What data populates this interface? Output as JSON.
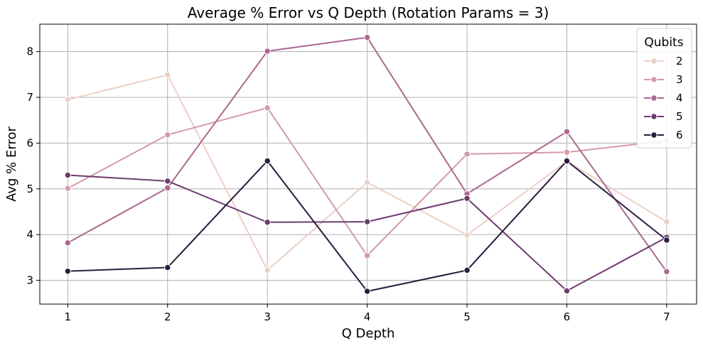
{
  "chart_data": {
    "type": "line",
    "title": "Average % Error vs Q Depth (Rotation Params = 3)",
    "xlabel": "Q Depth",
    "ylabel": "Avg % Error",
    "x": [
      1,
      2,
      3,
      4,
      5,
      6,
      7
    ],
    "xticks": [
      "1",
      "2",
      "3",
      "4",
      "5",
      "6",
      "7"
    ],
    "yticks": [
      "3",
      "4",
      "5",
      "6",
      "7",
      "8"
    ],
    "xlim": [
      0.72,
      7.3
    ],
    "ylim": [
      2.48,
      8.6
    ],
    "grid": true,
    "legend": {
      "title": "Qubits",
      "placement": "top-right"
    },
    "series": [
      {
        "name": "2",
        "color": "#ecd0c6",
        "values": [
          6.95,
          7.49,
          3.22,
          5.14,
          3.99,
          5.6,
          4.28
        ]
      },
      {
        "name": "3",
        "color": "#d59aa8",
        "values": [
          5.01,
          6.18,
          6.77,
          3.54,
          5.76,
          5.8,
          6.05
        ]
      },
      {
        "name": "4",
        "color": "#ad6890",
        "values": [
          3.82,
          5.02,
          8.01,
          8.31,
          4.89,
          6.25,
          3.19
        ]
      },
      {
        "name": "5",
        "color": "#6c3b6e",
        "values": [
          5.3,
          5.17,
          4.27,
          4.28,
          4.79,
          2.77,
          3.94
        ]
      },
      {
        "name": "6",
        "color": "#2b1c3e",
        "values": [
          3.2,
          3.28,
          5.61,
          2.76,
          3.22,
          5.61,
          3.88
        ]
      }
    ]
  }
}
